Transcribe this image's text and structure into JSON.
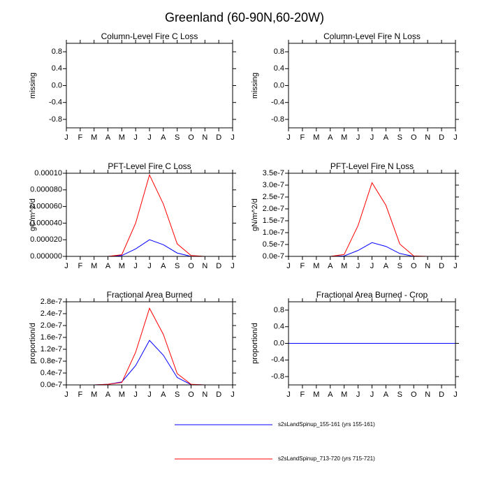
{
  "title": "Greenland (60-90N,60-20W)",
  "chart_data": [
    {
      "type": "line",
      "title": "Column-Level Fire C Loss",
      "ylabel": "missing",
      "categories": [
        "J",
        "F",
        "M",
        "A",
        "M",
        "J",
        "J",
        "A",
        "S",
        "O",
        "N",
        "D",
        "J"
      ],
      "ylim": [
        -1,
        1
      ],
      "yticks": [
        0.8,
        0.4,
        {
          "value": 0,
          "label": "0.0"
        },
        -0.4,
        -0.8
      ],
      "series": []
    },
    {
      "type": "line",
      "title": "Column-Level Fire N Loss",
      "ylabel": "missing",
      "categories": [
        "J",
        "F",
        "M",
        "A",
        "M",
        "J",
        "J",
        "A",
        "S",
        "O",
        "N",
        "D",
        "J"
      ],
      "ylim": [
        -1,
        1
      ],
      "yticks": [
        0.8,
        0.4,
        {
          "value": 0,
          "label": "0.0"
        },
        -0.4,
        -0.8
      ],
      "series": []
    },
    {
      "type": "line",
      "title": "PFT-Level Fire C Loss",
      "ylabel": "gC/m^2/d",
      "categories": [
        "J",
        "F",
        "M",
        "A",
        "M",
        "J",
        "J",
        "A",
        "S",
        "O",
        "N",
        "D",
        "J"
      ],
      "ylim": [
        0,
        0.0001
      ],
      "yticks": [
        {
          "value": 0,
          "label": "0.000000"
        },
        {
          "value": 2e-05,
          "label": "0.000020"
        },
        {
          "value": 4e-05,
          "label": "0.000040"
        },
        {
          "value": 6e-05,
          "label": "0.000060"
        },
        {
          "value": 8e-05,
          "label": "0.000080"
        },
        {
          "value": 0.0001,
          "label": "0.00010"
        }
      ],
      "series": [
        {
          "name": "s2sLandSpinup_155-161 (yrs 155-161)",
          "color": "#0000ff",
          "values": [
            0,
            0,
            0,
            0,
            1e-06,
            9e-06,
            2e-05,
            1.4e-05,
            4e-06,
            0,
            0,
            0,
            0
          ]
        },
        {
          "name": "s2sLandSpinup_713-720 (yrs 715-721)",
          "color": "#ff0000",
          "values": [
            0,
            0,
            0,
            0,
            2e-06,
            4e-05,
            9.8e-05,
            6.3e-05,
            1.5e-05,
            1e-06,
            0,
            0,
            0
          ]
        }
      ]
    },
    {
      "type": "line",
      "title": "PFT-Level Fire N Loss",
      "ylabel": "gN/m^2/d",
      "categories": [
        "J",
        "F",
        "M",
        "A",
        "M",
        "J",
        "J",
        "A",
        "S",
        "O",
        "N",
        "D",
        "J"
      ],
      "ylim": [
        0,
        3.5e-07
      ],
      "yticks": [
        {
          "value": 0,
          "label": "0.0e-7"
        },
        {
          "value": 5e-08,
          "label": "0.5e-7"
        },
        {
          "value": 1e-07,
          "label": "1.0e-7"
        },
        {
          "value": 1.5e-07,
          "label": "1.5e-7"
        },
        {
          "value": 2e-07,
          "label": "2.0e-7"
        },
        {
          "value": 2.5e-07,
          "label": "2.5e-7"
        },
        {
          "value": 3e-07,
          "label": "3.0e-7"
        },
        {
          "value": 3.5e-07,
          "label": "3.5e-7"
        }
      ],
      "series": [
        {
          "name": "s2sLandSpinup_155-161 (yrs 155-161)",
          "color": "#0000ff",
          "values": [
            0,
            0,
            0,
            0,
            2e-09,
            2.5e-08,
            5.8e-08,
            4.2e-08,
            1.2e-08,
            0,
            0,
            0,
            0
          ]
        },
        {
          "name": "s2sLandSpinup_713-720 (yrs 715-721)",
          "color": "#ff0000",
          "values": [
            0,
            0,
            0,
            0,
            8e-09,
            1.3e-07,
            3.1e-07,
            2.15e-07,
            5.2e-08,
            2e-09,
            0,
            0,
            0
          ]
        }
      ]
    },
    {
      "type": "line",
      "title": "Fractional Area Burned",
      "ylabel": "proportion/d",
      "categories": [
        "J",
        "F",
        "M",
        "A",
        "M",
        "J",
        "J",
        "A",
        "S",
        "O",
        "N",
        "D",
        "J"
      ],
      "ylim": [
        0,
        2.8e-07
      ],
      "yticks": [
        {
          "value": 0,
          "label": "0.0e-7"
        },
        {
          "value": 4e-08,
          "label": "0.4e-7"
        },
        {
          "value": 8e-08,
          "label": "0.8e-7"
        },
        {
          "value": 1.2e-07,
          "label": "1.2e-7"
        },
        {
          "value": 1.6e-07,
          "label": "1.6e-7"
        },
        {
          "value": 2e-07,
          "label": "2.0e-7"
        },
        {
          "value": 2.4e-07,
          "label": "2.4e-7"
        },
        {
          "value": 2.8e-07,
          "label": "2.8e-7"
        }
      ],
      "series": [
        {
          "name": "s2sLandSpinup_155-161 (yrs 155-161)",
          "color": "#0000ff",
          "values": [
            0,
            0,
            0,
            2e-09,
            1e-08,
            6.5e-08,
            1.5e-07,
            1e-07,
            2.5e-08,
            1e-09,
            0,
            0,
            0
          ]
        },
        {
          "name": "s2sLandSpinup_713-720 (yrs 715-721)",
          "color": "#ff0000",
          "values": [
            0,
            0,
            0,
            2e-09,
            8e-09,
            1.1e-07,
            2.58e-07,
            1.7e-07,
            3.8e-08,
            2e-09,
            0,
            0,
            0
          ]
        }
      ]
    },
    {
      "type": "line",
      "title": "Fractional Area Burned - Crop",
      "ylabel": "proportion/d",
      "categories": [
        "J",
        "F",
        "M",
        "A",
        "M",
        "J",
        "J",
        "A",
        "S",
        "O",
        "N",
        "D",
        "J"
      ],
      "ylim": [
        -1,
        1
      ],
      "yticks": [
        0.8,
        0.4,
        {
          "value": 0,
          "label": "0.0"
        },
        -0.4,
        -0.8
      ],
      "series": [
        {
          "name": "s2sLandSpinup_713-720 (yrs 715-721)",
          "color": "#ff0000",
          "values": [
            0,
            0,
            0,
            0,
            0,
            0,
            0,
            0,
            0,
            0,
            0,
            0,
            0
          ]
        },
        {
          "name": "s2sLandSpinup_155-161 (yrs 155-161)",
          "color": "#0000ff",
          "values": [
            0,
            0,
            0,
            0,
            0,
            0,
            0,
            0,
            0,
            0,
            0,
            0,
            0
          ]
        }
      ]
    }
  ]
}
